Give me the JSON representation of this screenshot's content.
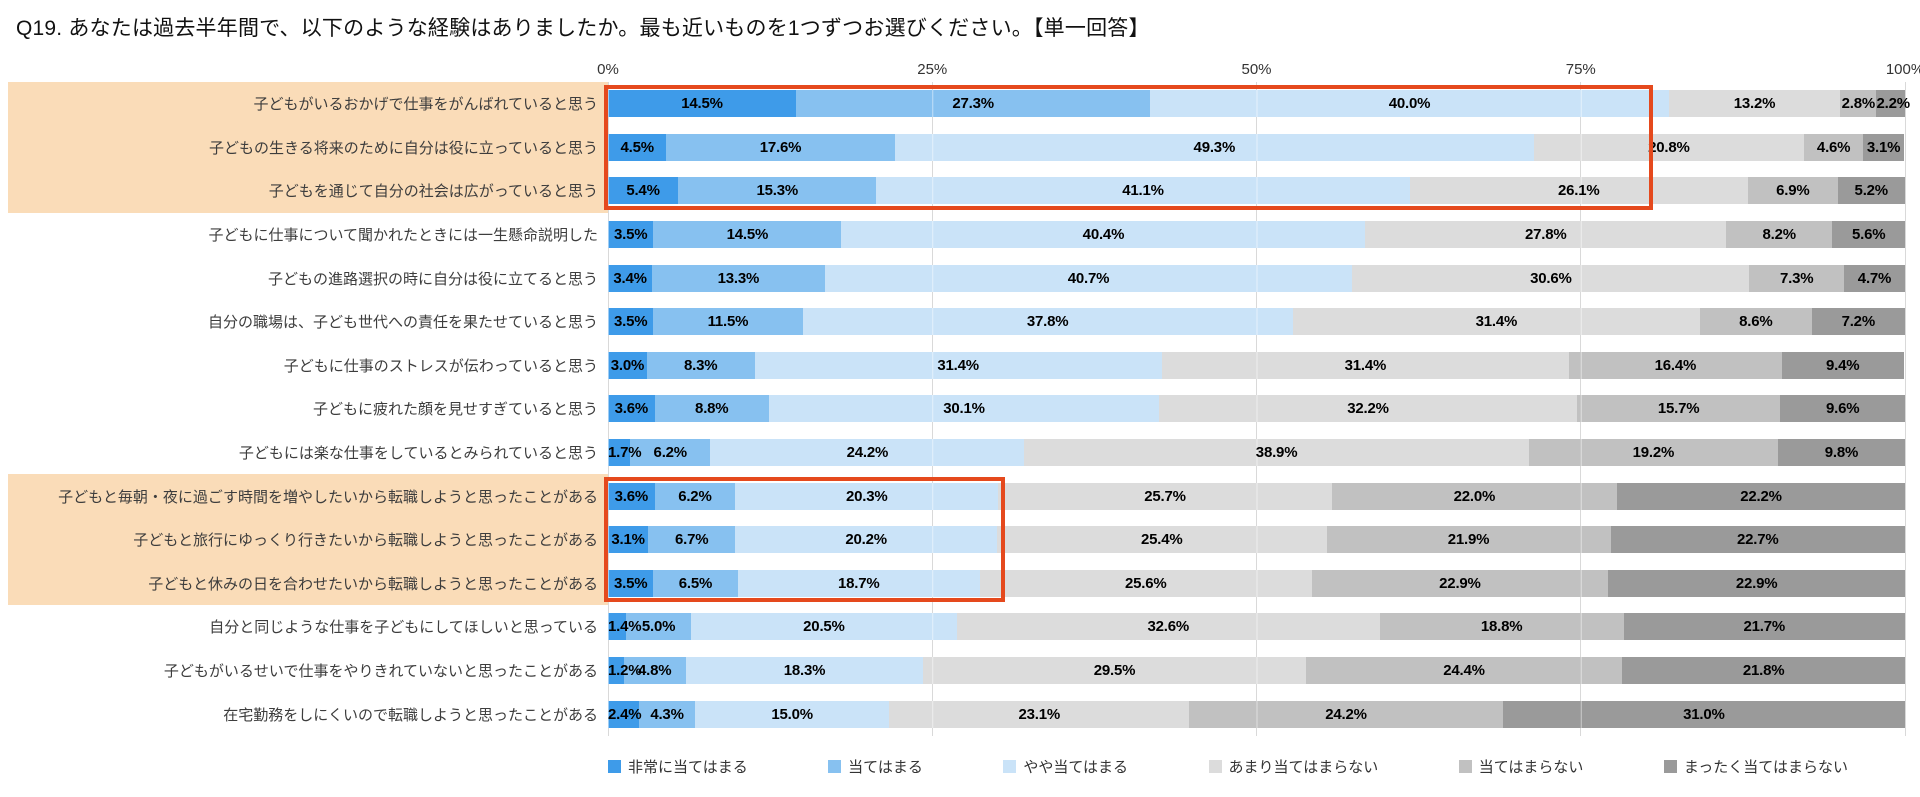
{
  "title": "Q19. あなたは過去半年間で、以下のような経験はありましたか。最も近いものを1つずつお選びください。【単一回答】",
  "axis_ticks": [
    {
      "label": "0%",
      "pos": 0
    },
    {
      "label": "25%",
      "pos": 25
    },
    {
      "label": "50%",
      "pos": 50
    },
    {
      "label": "75%",
      "pos": 75
    },
    {
      "label": "100%",
      "pos": 100
    }
  ],
  "legend": [
    {
      "label": "非常に当てはまる",
      "color": "#3E9BE9"
    },
    {
      "label": "当てはまる",
      "color": "#87C1F0"
    },
    {
      "label": "やや当てはまる",
      "color": "#CAE3F8"
    },
    {
      "label": "あまり当てはまらない",
      "color": "#DCDCDC"
    },
    {
      "label": "当てはまらない",
      "color": "#C1C1C1"
    },
    {
      "label": "まったく当てはまらない",
      "color": "#9A9A9A"
    }
  ],
  "style": {
    "row_highlight_color": "#FADCB8",
    "box_border_color": "#E5491D",
    "gridline_color": "#d9d9d9"
  },
  "highlighted_rows": [
    0,
    1,
    2,
    9,
    10,
    11
  ],
  "highlight_boxes": [
    {
      "row_start": 0,
      "row_end": 2,
      "width_pct": 80.3
    },
    {
      "row_start": 9,
      "row_end": 11,
      "width_pct": 30.3
    }
  ],
  "chart_data": {
    "type": "bar",
    "stacked": true,
    "orientation": "horizontal",
    "title": "Q19. あなたは過去半年間で、以下のような経験はありましたか。最も近いものを1つずつお選びください。【単一回答】",
    "xlim": [
      0,
      100
    ],
    "gridlines": [
      0,
      25,
      50,
      75,
      100
    ],
    "legend_position": "bottom",
    "value_suffix": "%",
    "categories": [
      "子どもがいるおかげで仕事をがんばれていると思う",
      "子どもの生きる将来のために自分は役に立っていると思う",
      "子どもを通じて自分の社会は広がっていると思う",
      "子どもに仕事について聞かれたときには一生懸命説明した",
      "子どもの進路選択の時に自分は役に立てると思う",
      "自分の職場は、子ども世代への責任を果たせていると思う",
      "子どもに仕事のストレスが伝わっていると思う",
      "子どもに疲れた顔を見せすぎていると思う",
      "子どもには楽な仕事をしているとみられていると思う",
      "子どもと毎朝・夜に過ごす時間を増やしたいから転職しようと思ったことがある",
      "子どもと旅行にゆっくり行きたいから転職しようと思ったことがある",
      "子どもと休みの日を合わせたいから転職しようと思ったことがある",
      "自分と同じような仕事を子どもにしてほしいと思っている",
      "子どもがいるせいで仕事をやりきれていないと思ったことがある",
      "在宅勤務をしにくいので転職しようと思ったことがある"
    ],
    "series": [
      {
        "name": "非常に当てはまる",
        "values": [
          14.5,
          4.5,
          5.4,
          3.5,
          3.4,
          3.5,
          3.0,
          3.6,
          1.7,
          3.6,
          3.1,
          3.5,
          1.4,
          1.2,
          2.4
        ]
      },
      {
        "name": "当てはまる",
        "values": [
          27.3,
          17.6,
          15.3,
          14.5,
          13.3,
          11.5,
          8.3,
          8.8,
          6.2,
          6.2,
          6.7,
          6.5,
          5.0,
          4.8,
          4.3
        ]
      },
      {
        "name": "やや当てはまる",
        "values": [
          40.0,
          49.3,
          41.1,
          40.4,
          40.7,
          37.8,
          31.4,
          30.1,
          24.2,
          20.3,
          20.2,
          18.7,
          20.5,
          18.3,
          15.0
        ]
      },
      {
        "name": "あまり当てはまらない",
        "values": [
          13.2,
          20.8,
          26.1,
          27.8,
          30.6,
          31.4,
          31.4,
          32.2,
          38.9,
          25.7,
          25.4,
          25.6,
          32.6,
          29.5,
          23.1
        ]
      },
      {
        "name": "当てはまらない",
        "values": [
          2.8,
          4.6,
          6.9,
          8.2,
          7.3,
          8.6,
          16.4,
          15.7,
          19.2,
          22.0,
          21.9,
          22.9,
          18.8,
          24.4,
          24.2
        ]
      },
      {
        "name": "まったく当てはまらない",
        "values": [
          2.2,
          3.1,
          5.2,
          5.6,
          4.7,
          7.2,
          9.4,
          9.6,
          9.8,
          22.2,
          22.7,
          22.9,
          21.7,
          21.8,
          31.0
        ]
      }
    ]
  }
}
